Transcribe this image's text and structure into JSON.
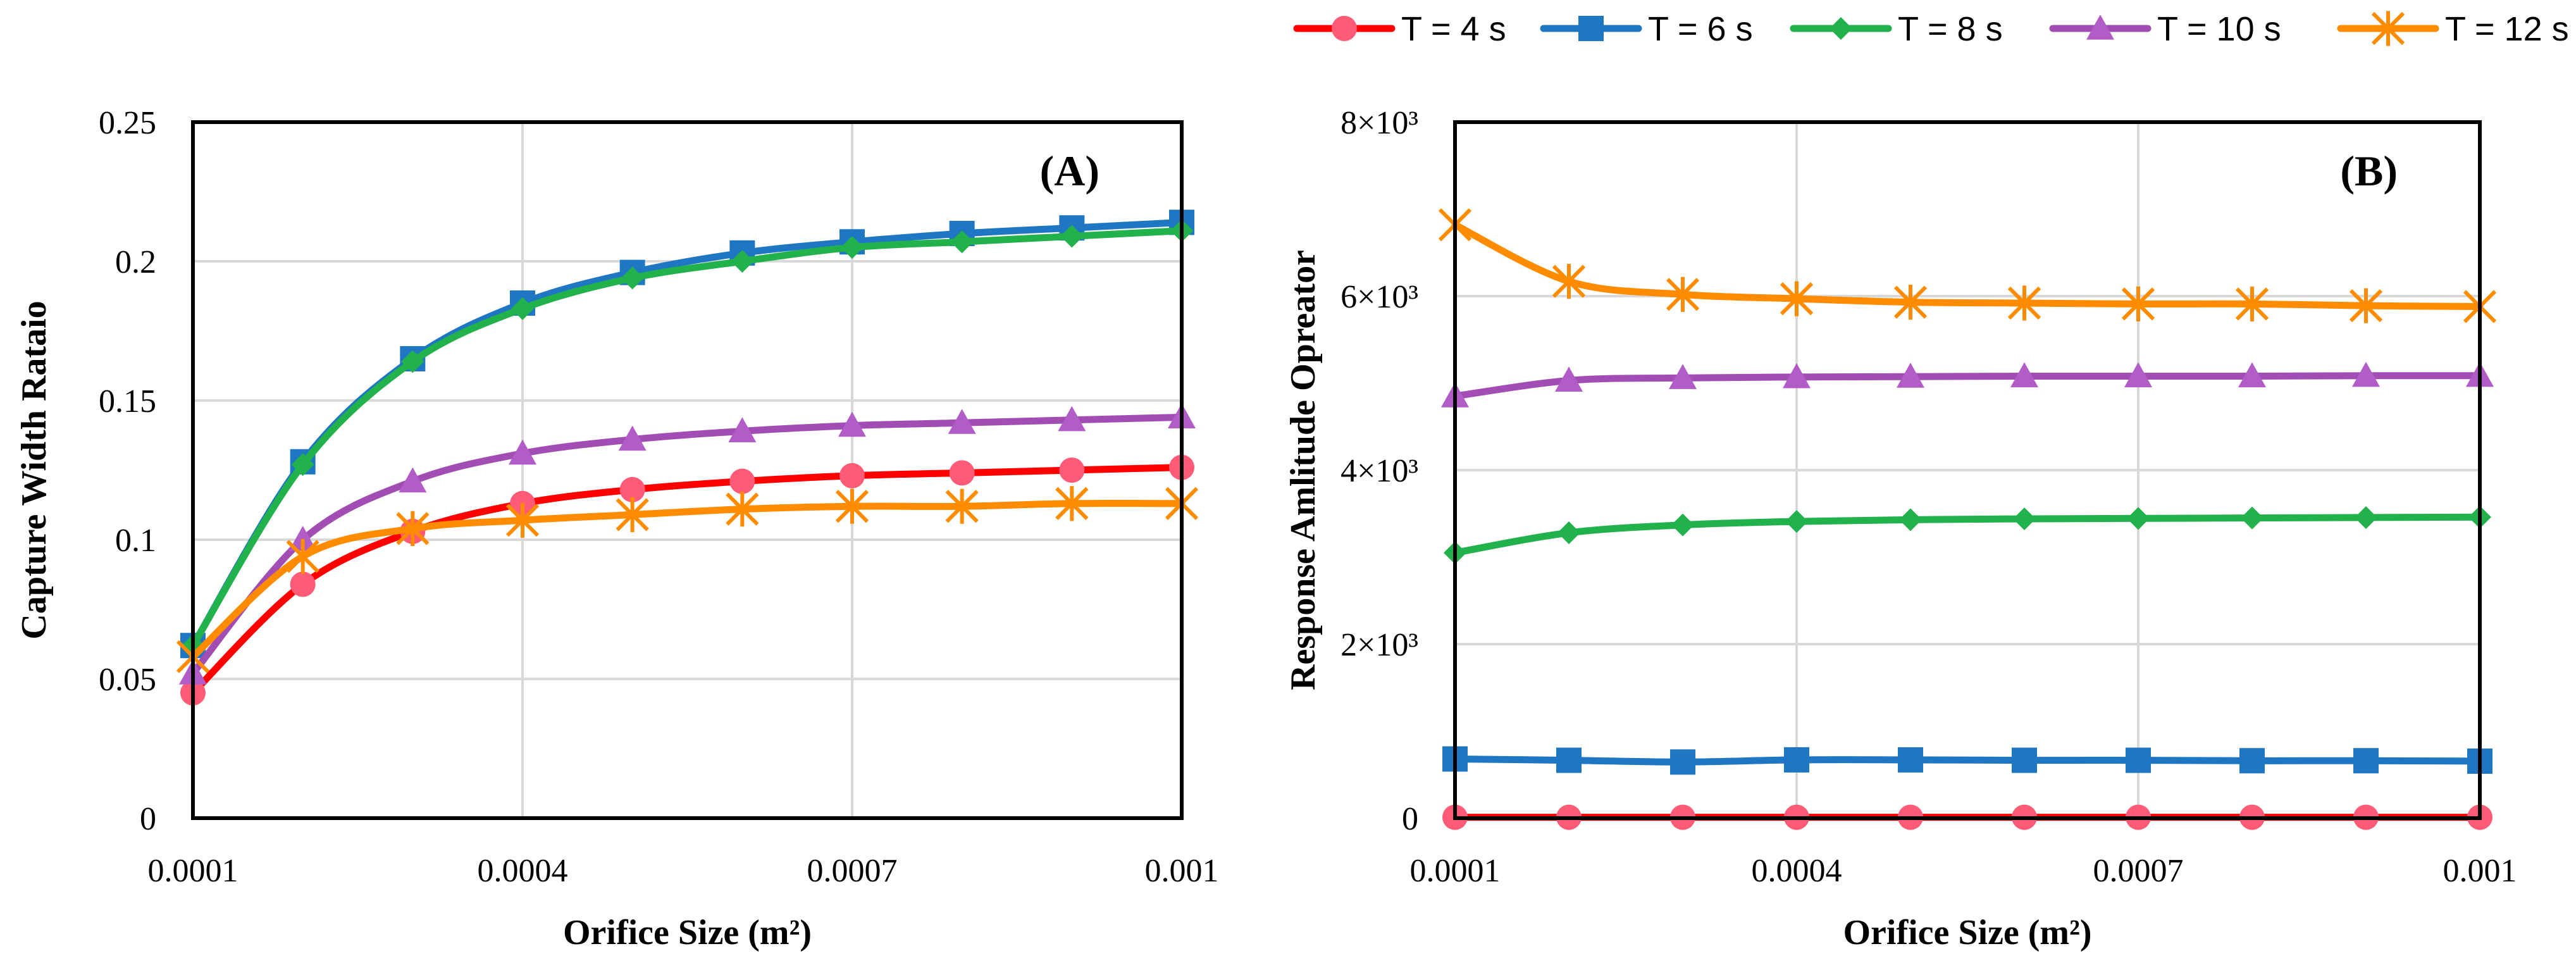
{
  "legend": [
    {
      "name": "T = 4 s",
      "color": "#ff0000",
      "marker": "circle",
      "marker_fill": "#ff5a76"
    },
    {
      "name": "T = 6 s",
      "color": "#1f77c4",
      "marker": "square",
      "marker_fill": "#1f77c4"
    },
    {
      "name": "T = 8 s",
      "color": "#21b24b",
      "marker": "diamond",
      "marker_fill": "#21b24b"
    },
    {
      "name": "T = 10 s",
      "color": "#a14db3",
      "marker": "triangle",
      "marker_fill": "#b25cc7"
    },
    {
      "name": "T = 12 s",
      "color": "#ff8c00",
      "marker": "asterisk",
      "marker_fill": "#ff8c00"
    }
  ],
  "chart_data": [
    {
      "type": "line",
      "panel_label": "(A)",
      "title": "",
      "xlabel": "Orifice Size (m²)",
      "ylabel": "Capture Width Rataio",
      "x": [
        0.0001,
        0.0002,
        0.0003,
        0.0004,
        0.0005,
        0.0006,
        0.0007,
        0.0008,
        0.0009,
        0.001
      ],
      "xlim": [
        0.0001,
        0.001
      ],
      "ylim": [
        0,
        0.25
      ],
      "x_ticks": [
        0.0001,
        0.0004,
        0.0007,
        0.001
      ],
      "x_tick_labels": [
        "0.0001",
        "0.0004",
        "0.0007",
        "0.001"
      ],
      "y_ticks": [
        0,
        0.05,
        0.1,
        0.15,
        0.2,
        0.25
      ],
      "y_tick_labels": [
        "0",
        "0.05",
        "0.1",
        "0.15",
        "0.2",
        "0.25"
      ],
      "grid": true,
      "series": [
        {
          "name": "T = 4 s",
          "values": [
            0.045,
            0.084,
            0.103,
            0.113,
            0.118,
            0.121,
            0.123,
            0.124,
            0.125,
            0.126
          ]
        },
        {
          "name": "T = 6 s",
          "values": [
            0.062,
            0.128,
            0.165,
            0.185,
            0.196,
            0.203,
            0.207,
            0.21,
            0.212,
            0.214
          ]
        },
        {
          "name": "T = 8 s",
          "values": [
            0.062,
            0.127,
            0.164,
            0.183,
            0.194,
            0.2,
            0.205,
            0.207,
            0.209,
            0.211
          ]
        },
        {
          "name": "T = 10 s",
          "values": [
            0.052,
            0.1,
            0.121,
            0.131,
            0.136,
            0.139,
            0.141,
            0.142,
            0.143,
            0.144
          ]
        },
        {
          "name": "T = 12 s",
          "values": [
            0.058,
            0.094,
            0.104,
            0.107,
            0.109,
            0.111,
            0.112,
            0.112,
            0.113,
            0.113
          ]
        }
      ]
    },
    {
      "type": "line",
      "panel_label": "(B)",
      "title": "",
      "xlabel": "Orifice Size (m²)",
      "ylabel": "Response Amlitude Opreator",
      "x": [
        0.0001,
        0.0002,
        0.0003,
        0.0004,
        0.0005,
        0.0006,
        0.0007,
        0.0008,
        0.0009,
        0.001
      ],
      "xlim": [
        0.0001,
        0.001
      ],
      "ylim": [
        0,
        8000
      ],
      "x_ticks": [
        0.0001,
        0.0004,
        0.0007,
        0.001
      ],
      "x_tick_labels": [
        "0.0001",
        "0.0004",
        "0.0007",
        "0.001"
      ],
      "y_ticks": [
        0,
        2000,
        4000,
        6000,
        8000
      ],
      "y_tick_labels": [
        "0",
        "2×10³",
        "4×10³",
        "6×10³",
        "8×10³"
      ],
      "grid": true,
      "series": [
        {
          "name": "T = 4 s",
          "values": [
            10,
            10,
            10,
            10,
            10,
            10,
            10,
            10,
            10,
            10
          ]
        },
        {
          "name": "T = 6 s",
          "values": [
            680,
            665,
            645,
            670,
            670,
            665,
            665,
            660,
            660,
            655
          ]
        },
        {
          "name": "T = 8 s",
          "values": [
            3050,
            3280,
            3370,
            3410,
            3430,
            3440,
            3445,
            3450,
            3455,
            3460
          ]
        },
        {
          "name": "T = 10 s",
          "values": [
            4850,
            5030,
            5060,
            5070,
            5075,
            5080,
            5080,
            5080,
            5085,
            5085
          ]
        },
        {
          "name": "T = 12 s",
          "values": [
            6820,
            6170,
            6020,
            5970,
            5930,
            5920,
            5910,
            5910,
            5890,
            5880
          ]
        }
      ]
    }
  ]
}
